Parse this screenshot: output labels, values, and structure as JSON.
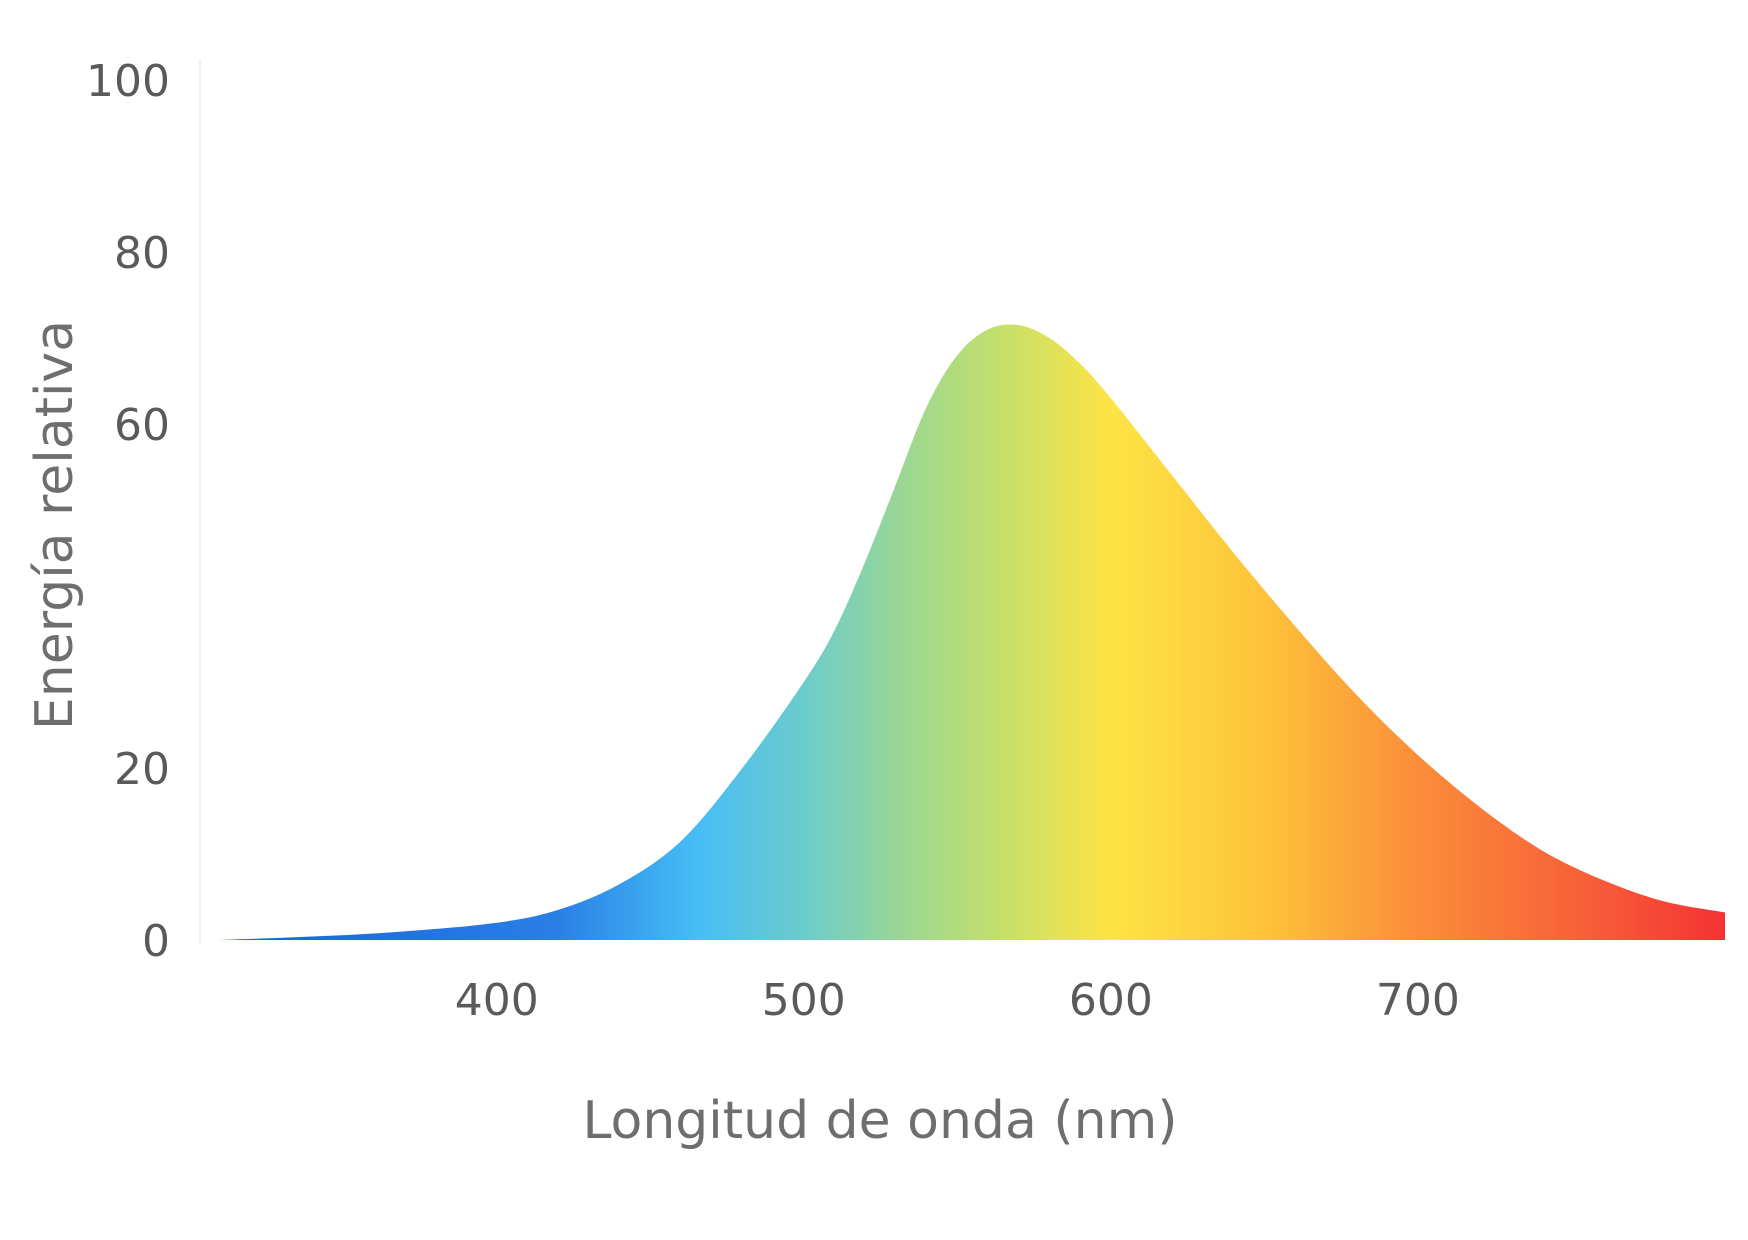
{
  "chart_data": {
    "type": "area",
    "title": "",
    "xlabel": "Longitud de onda (nm)",
    "ylabel": "Energía relativa",
    "xlim": [
      305,
      800
    ],
    "ylim": [
      0,
      100
    ],
    "x_ticks": [
      400,
      500,
      600,
      700
    ],
    "x_tick_labels": [
      "400",
      "500",
      "600",
      "700"
    ],
    "y_ticks": [
      0,
      20,
      60,
      80,
      100
    ],
    "y_tick_labels": [
      "0",
      "20",
      "60",
      "80",
      "100"
    ],
    "grid": false,
    "legend": "none",
    "series": [
      {
        "x": [
          310,
          340,
          370,
          400,
          420,
          440,
          460,
          480,
          500,
          510,
          520,
          530,
          540,
          550,
          560,
          570,
          580,
          590,
          600,
          620,
          640,
          660,
          680,
          700,
          720,
          740,
          760,
          780,
          800
        ],
        "values": [
          0,
          0.4,
          1.0,
          2.0,
          3.5,
          6.5,
          11.5,
          20,
          30,
          36,
          44,
          53,
          62,
          68,
          71,
          71.5,
          70,
          67,
          63,
          54,
          45,
          36.5,
          28.5,
          21.5,
          15.5,
          10.5,
          7,
          4.5,
          3.2
        ]
      }
    ],
    "gradient_stops": [
      {
        "x": 310,
        "color": "#1565d8"
      },
      {
        "x": 420,
        "color": "#2a7fe6"
      },
      {
        "x": 465,
        "color": "#46bdf6"
      },
      {
        "x": 500,
        "color": "#6ccccc"
      },
      {
        "x": 535,
        "color": "#9ed88f"
      },
      {
        "x": 565,
        "color": "#c6e06a"
      },
      {
        "x": 600,
        "color": "#fde445"
      },
      {
        "x": 650,
        "color": "#fdc33a"
      },
      {
        "x": 700,
        "color": "#fb8d3a"
      },
      {
        "x": 760,
        "color": "#f75a38"
      },
      {
        "x": 800,
        "color": "#f53233"
      }
    ]
  }
}
